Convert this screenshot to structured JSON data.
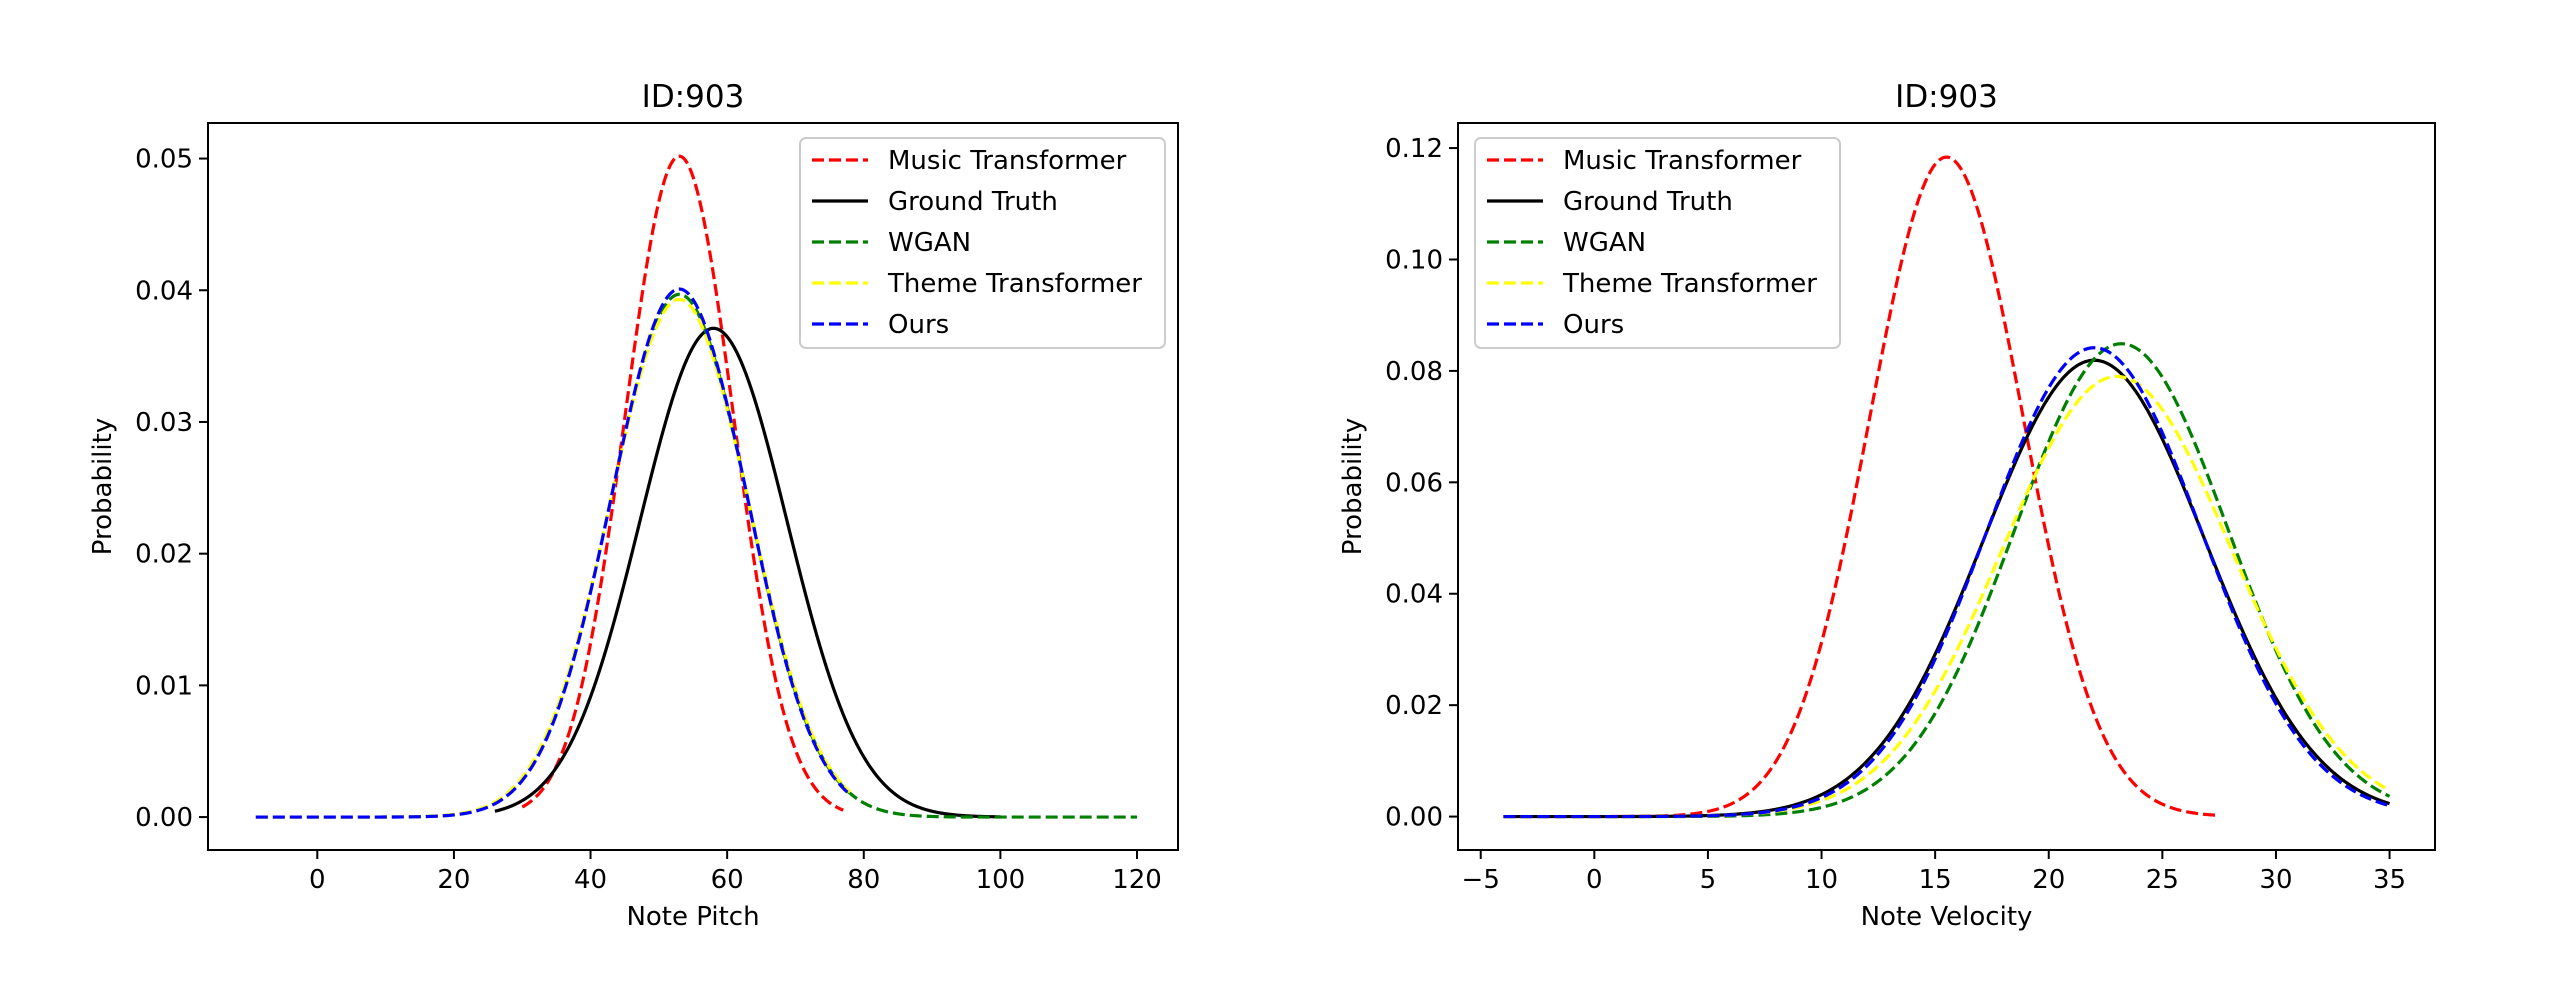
{
  "chart_data": [
    {
      "type": "line",
      "title": "ID:903",
      "xlabel": "Note Pitch",
      "ylabel": "Probability",
      "xlim": [
        -16,
        126
      ],
      "ylim": [
        -0.0025,
        0.0527
      ],
      "xticks": [
        0,
        20,
        40,
        60,
        80,
        100,
        120
      ],
      "yticks": [
        0.0,
        0.01,
        0.02,
        0.03,
        0.04,
        0.05
      ],
      "xtick_labels": [
        "0",
        "20",
        "40",
        "60",
        "80",
        "100",
        "120"
      ],
      "ytick_labels": [
        "0.00",
        "0.01",
        "0.02",
        "0.03",
        "0.04",
        "0.05"
      ],
      "grid": false,
      "legend_position": "top-right",
      "series": [
        {
          "name": "Music Transformer",
          "color": "#ff0000",
          "style": "dashed",
          "mean": 53,
          "std": 7.95,
          "x_range": [
            30,
            77
          ]
        },
        {
          "name": "Ground Truth",
          "color": "#000000",
          "style": "solid",
          "mean": 58,
          "std": 10.75,
          "x_range": [
            26,
            100
          ]
        },
        {
          "name": "WGAN",
          "color": "#008000",
          "style": "dashed",
          "mean": 53,
          "std": 10.05,
          "x_range": [
            -9,
            120
          ]
        },
        {
          "name": "Theme Transformer",
          "color": "#ffff00",
          "style": "dashed",
          "mean": 53,
          "std": 10.15,
          "x_range": [
            -9,
            78
          ]
        },
        {
          "name": "Ours",
          "color": "#0000ff",
          "style": "dashed",
          "mean": 53,
          "std": 9.95,
          "x_range": [
            -9,
            78
          ]
        }
      ]
    },
    {
      "type": "line",
      "title": "ID:903",
      "xlabel": "Note Velocity",
      "ylabel": "Probability",
      "xlim": [
        -6,
        37
      ],
      "ylim": [
        -0.006,
        0.1245
      ],
      "xticks": [
        -5,
        0,
        5,
        10,
        15,
        20,
        25,
        30,
        35
      ],
      "yticks": [
        0.0,
        0.02,
        0.04,
        0.06,
        0.08,
        0.1,
        0.12
      ],
      "xtick_labels": [
        "−5",
        "0",
        "5",
        "10",
        "15",
        "20",
        "25",
        "30",
        "35"
      ],
      "ytick_labels": [
        "0.00",
        "0.02",
        "0.04",
        "0.06",
        "0.08",
        "0.10",
        "0.12"
      ],
      "grid": false,
      "legend_position": "top-left",
      "series": [
        {
          "name": "Music Transformer",
          "color": "#ff0000",
          "style": "dashed",
          "mean": 15.5,
          "std": 3.37,
          "x_range": [
            -4,
            27.5
          ]
        },
        {
          "name": "Ground Truth",
          "color": "#000000",
          "style": "solid",
          "mean": 22,
          "std": 4.87,
          "x_range": [
            -4,
            35
          ]
        },
        {
          "name": "WGAN",
          "color": "#008000",
          "style": "dashed",
          "mean": 23.2,
          "std": 4.7,
          "x_range": [
            -4,
            35
          ]
        },
        {
          "name": "Theme Transformer",
          "color": "#ffff00",
          "style": "dashed",
          "mean": 23,
          "std": 5.05,
          "x_range": [
            -4,
            35
          ]
        },
        {
          "name": "Ours",
          "color": "#0000ff",
          "style": "dashed",
          "mean": 22,
          "std": 4.74,
          "x_range": [
            -4,
            35
          ]
        }
      ]
    }
  ]
}
